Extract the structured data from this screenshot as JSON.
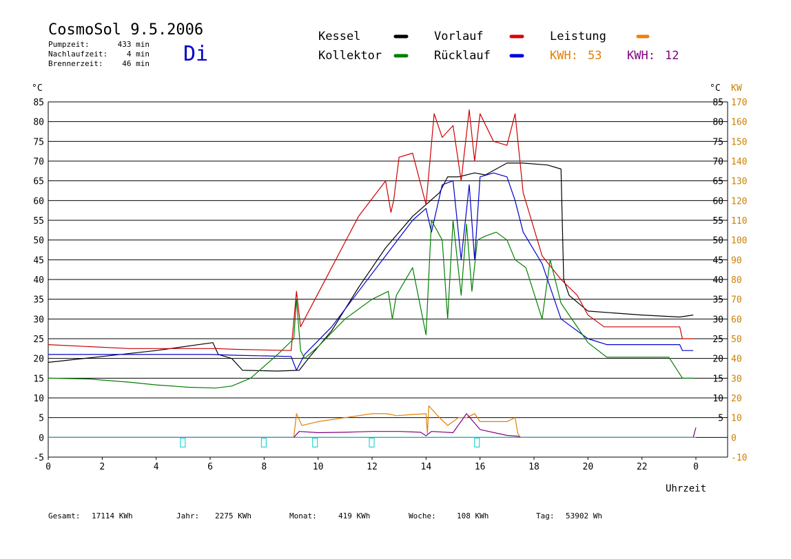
{
  "header": {
    "title": "CosmoSol 9.5.2006",
    "day": "Di",
    "stats": [
      {
        "label": "Pumpzeit:",
        "value": "433 min"
      },
      {
        "label": "Nachlaufzeit:",
        "value": "4 min"
      },
      {
        "label": "Brennerzeit:",
        "value": "46 min"
      }
    ]
  },
  "legend": {
    "kessel": "Kessel",
    "kollektor": "Kollektor",
    "vorlauf": "Vorlauf",
    "ruecklauf": "Rücklauf",
    "leistung": "Leistung",
    "kwh1_label": "KWH:",
    "kwh1_value": "53",
    "kwh2_label": "KWH:",
    "kwh2_value": "12"
  },
  "colors": {
    "kessel": "#000000",
    "kollektor": "#008000",
    "vorlauf": "#cc0000",
    "ruecklauf": "#0000cc",
    "leistung": "#e08000",
    "kwh2": "#800080",
    "pump": "#00cccc",
    "kw_axis": "#cc8000"
  },
  "footer": {
    "items": [
      {
        "label": "Gesamt:",
        "value": "17114 KWh"
      },
      {
        "label": "Jahr:",
        "value": "2275 KWh"
      },
      {
        "label": "Monat:",
        "value": "419 KWh"
      },
      {
        "label": "Woche:",
        "value": "108 KWh"
      },
      {
        "label": "Tag:",
        "value": "53902 Wh"
      }
    ]
  },
  "chart_data": {
    "type": "line",
    "title": "CosmoSol 9.5.2006",
    "xlabel": "Uhrzeit",
    "ylabel_left": "°C",
    "ylabel_right_1": "°C",
    "ylabel_right_2": "KW",
    "xlim": [
      0,
      24
    ],
    "ylim": [
      -5,
      85
    ],
    "grid": true,
    "x_ticks": [
      "0",
      "2",
      "4",
      "6",
      "8",
      "10",
      "12",
      "14",
      "16",
      "18",
      "20",
      "22",
      "0"
    ],
    "y_ticks_left": [
      "85",
      "80",
      "75",
      "70",
      "65",
      "60",
      "55",
      "50",
      "45",
      "40",
      "35",
      "30",
      "25",
      "20",
      "15",
      "10",
      "5",
      "0",
      "-5"
    ],
    "y_ticks_right": [
      "85",
      "80",
      "75",
      "70",
      "65",
      "60",
      "55",
      "50",
      "45",
      "40",
      "35",
      "30",
      "25",
      "20",
      "15",
      "10",
      "5"
    ],
    "kw_ticks": [
      "170",
      "160",
      "150",
      "140",
      "130",
      "120",
      "110",
      "100",
      "90",
      "80",
      "70",
      "60",
      "50",
      "40",
      "30",
      "20",
      "10",
      "0",
      "-10"
    ],
    "series": [
      {
        "name": "Kessel",
        "key": "kessel",
        "x": [
          0,
          2,
          4,
          6.1,
          6.3,
          6.8,
          7.2,
          8.5,
          9.3,
          9.7,
          10.5,
          11.5,
          12.5,
          13.5,
          14.5,
          14.8,
          15.2,
          15.8,
          16.2,
          17,
          17.6,
          18.5,
          19,
          19.1,
          19.3,
          20,
          22,
          23.4,
          23.9
        ],
        "y": [
          19,
          20.5,
          22,
          24,
          21,
          20,
          17,
          16.8,
          17,
          20.5,
          27,
          38,
          48,
          56,
          62,
          66,
          66,
          67,
          66.5,
          69.5,
          69.5,
          69,
          68,
          40,
          36,
          32,
          31,
          30.5,
          31
        ]
      },
      {
        "name": "Vorlauf",
        "key": "vorlauf",
        "x": [
          0,
          3,
          6.2,
          7,
          9.0,
          9.2,
          9.35,
          9.5,
          10.5,
          11.5,
          12.5,
          12.7,
          12.8,
          13.0,
          13.5,
          14.0,
          14.3,
          14.6,
          15.0,
          15.3,
          15.6,
          15.8,
          16.0,
          16.5,
          17.0,
          17.3,
          17.6,
          18.3,
          19.0,
          19.6,
          20.0,
          20.6,
          23.4,
          23.5,
          23.9
        ],
        "y": [
          23.5,
          22.5,
          22.5,
          22.3,
          22,
          37,
          28,
          30,
          43,
          56,
          65,
          57,
          60,
          71,
          72,
          59,
          82,
          76,
          79,
          65,
          83,
          70,
          82,
          75,
          74,
          82,
          62,
          46,
          40,
          36,
          31,
          28,
          28,
          25,
          25
        ]
      },
      {
        "name": "Rücklauf",
        "key": "ruecklauf",
        "x": [
          0,
          3,
          6,
          7,
          9.0,
          9.2,
          9.5,
          10.5,
          11.5,
          12.5,
          13.5,
          14.0,
          14.2,
          14.6,
          15.0,
          15.3,
          15.6,
          15.8,
          16.0,
          16.5,
          17,
          17.3,
          17.6,
          18.3,
          19,
          20,
          20.7,
          23.4,
          23.5,
          23.9
        ],
        "y": [
          21,
          21,
          21,
          20.8,
          20.5,
          17,
          21,
          28,
          37,
          46,
          55,
          58,
          52,
          64,
          65,
          45,
          64,
          45,
          66,
          67,
          66,
          60,
          52,
          44,
          30,
          25,
          23.5,
          23.5,
          22,
          22
        ]
      },
      {
        "name": "Kollektor",
        "key": "kollektor",
        "x": [
          0,
          1.5,
          3,
          4,
          5.2,
          6.2,
          6.8,
          7.5,
          8.5,
          9.1,
          9.2,
          9.35,
          9.5,
          10,
          11,
          12,
          12.6,
          12.75,
          12.9,
          13.5,
          14.0,
          14.2,
          14.6,
          14.8,
          15.0,
          15.3,
          15.5,
          15.7,
          15.9,
          16.2,
          16.6,
          17.0,
          17.3,
          17.7,
          18.3,
          18.6,
          19.0,
          19.5,
          20.0,
          20.7,
          23.0,
          23.5,
          23.9
        ],
        "y": [
          15,
          14.8,
          14,
          13.3,
          12.7,
          12.5,
          13,
          15,
          21,
          25,
          35,
          22,
          20,
          23,
          30,
          35,
          37,
          30,
          36,
          43,
          26,
          55,
          50,
          30,
          55,
          36,
          54,
          37,
          50,
          51,
          52,
          50,
          45,
          43,
          30,
          45,
          34,
          29,
          24,
          20.3,
          20.3,
          15,
          15
        ]
      },
      {
        "name": "Leistung",
        "key": "leistung",
        "x": [
          0,
          9.1,
          9.2,
          9.4,
          10,
          11,
          11.5,
          12,
          12.5,
          12.7,
          12.9,
          13.5,
          14.0,
          14.05,
          14.1,
          14.5,
          14.8,
          15.2,
          15.5,
          15.8,
          16.0,
          16.5,
          17.0,
          17.3,
          17.4,
          17.5,
          24
        ],
        "y": [
          0,
          0,
          6,
          3,
          4,
          5,
          5.5,
          6,
          6,
          5.8,
          5.5,
          5.8,
          6,
          1,
          8,
          5,
          3,
          5,
          5,
          6,
          4,
          4,
          4,
          5,
          1,
          0,
          0
        ]
      },
      {
        "name": "KWH 12",
        "key": "kwh2",
        "x": [
          0,
          9.1,
          9.3,
          10,
          11,
          12,
          13,
          13.8,
          14.0,
          14.2,
          15,
          15.5,
          16,
          17,
          17.4,
          17.5,
          23.9,
          24
        ],
        "y": [
          0,
          0,
          1.5,
          1.2,
          1.3,
          1.5,
          1.5,
          1.3,
          0.4,
          1.5,
          1.2,
          6,
          2,
          0.5,
          0.3,
          0,
          0,
          2.5
        ]
      },
      {
        "name": "Pumpe",
        "key": "pump",
        "x": [
          0,
          24
        ],
        "y": [
          0,
          0
        ]
      }
    ]
  }
}
